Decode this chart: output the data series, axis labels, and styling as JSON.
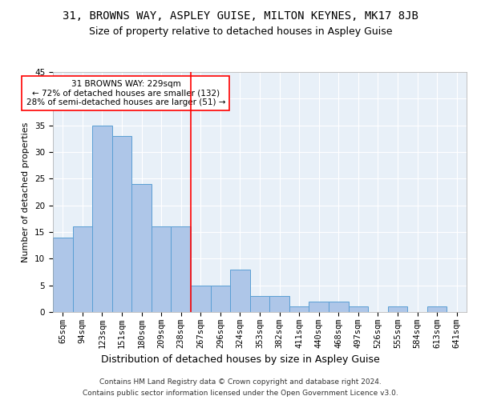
{
  "title1": "31, BROWNS WAY, ASPLEY GUISE, MILTON KEYNES, MK17 8JB",
  "title2": "Size of property relative to detached houses in Aspley Guise",
  "xlabel": "Distribution of detached houses by size in Aspley Guise",
  "ylabel": "Number of detached properties",
  "footnote1": "Contains HM Land Registry data © Crown copyright and database right 2024.",
  "footnote2": "Contains public sector information licensed under the Open Government Licence v3.0.",
  "categories": [
    "65sqm",
    "94sqm",
    "123sqm",
    "151sqm",
    "180sqm",
    "209sqm",
    "238sqm",
    "267sqm",
    "296sqm",
    "324sqm",
    "353sqm",
    "382sqm",
    "411sqm",
    "440sqm",
    "468sqm",
    "497sqm",
    "526sqm",
    "555sqm",
    "584sqm",
    "613sqm",
    "641sqm"
  ],
  "values": [
    14,
    16,
    35,
    33,
    24,
    16,
    16,
    5,
    5,
    8,
    3,
    3,
    1,
    2,
    2,
    1,
    0,
    1,
    0,
    1,
    0
  ],
  "bar_color": "#aec6e8",
  "bar_edge_color": "#5a9fd4",
  "vline_x": 6.5,
  "annotation_text": "31 BROWNS WAY: 229sqm\n← 72% of detached houses are smaller (132)\n28% of semi-detached houses are larger (51) →",
  "annotation_box_color": "white",
  "annotation_box_edge_color": "red",
  "vline_color": "red",
  "ylim": [
    0,
    45
  ],
  "yticks": [
    0,
    5,
    10,
    15,
    20,
    25,
    30,
    35,
    40,
    45
  ],
  "bg_color": "#e8f0f8",
  "fig_bg_color": "white",
  "title1_fontsize": 10,
  "title2_fontsize": 9,
  "xlabel_fontsize": 9,
  "ylabel_fontsize": 8,
  "tick_fontsize": 7.5,
  "footnote_fontsize": 6.5
}
